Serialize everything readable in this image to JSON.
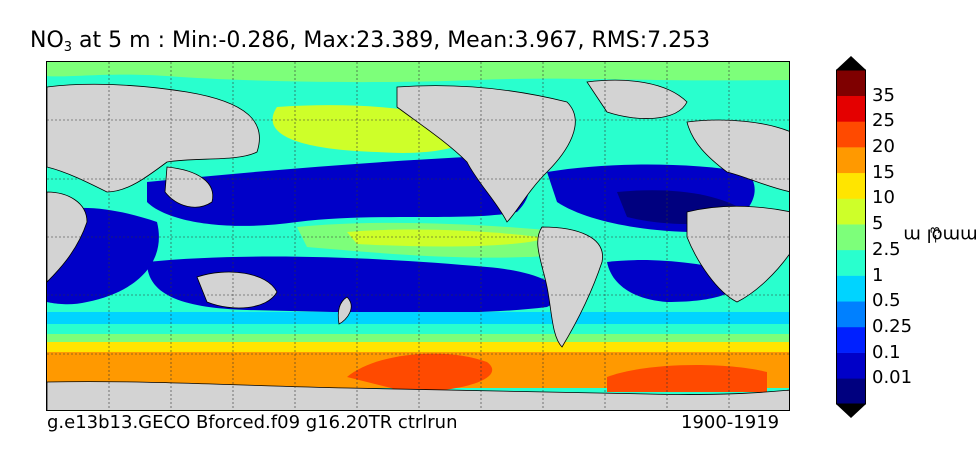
{
  "title": {
    "variable_base": "NO",
    "variable_sub": "3",
    "text": " at 5 m : Min:-0.286, Max:23.389, Mean:3.967, RMS:7.253"
  },
  "footer": {
    "run_name": "g.e13b13.GECO Bforced.f09 g16.20TR ctrlrun",
    "years": "1900-1919"
  },
  "colorbar": {
    "units_base": "mmol m",
    "units_sup": "−3",
    "levels": [
      "0.01",
      "0.1",
      "0.25",
      "0.5",
      "1",
      "2.5",
      "5",
      "10",
      "15",
      "20",
      "25",
      "35"
    ],
    "colors": [
      "#00007f",
      "#0000c8",
      "#0020ff",
      "#0080ff",
      "#00d4ff",
      "#29ffce",
      "#7dff7a",
      "#ceff29",
      "#ffe500",
      "#ff9900",
      "#ff4a00",
      "#e40000",
      "#7f0000"
    ]
  },
  "map": {
    "land_color": "#d3d3d3",
    "ocean_color": "#29ffce"
  }
}
